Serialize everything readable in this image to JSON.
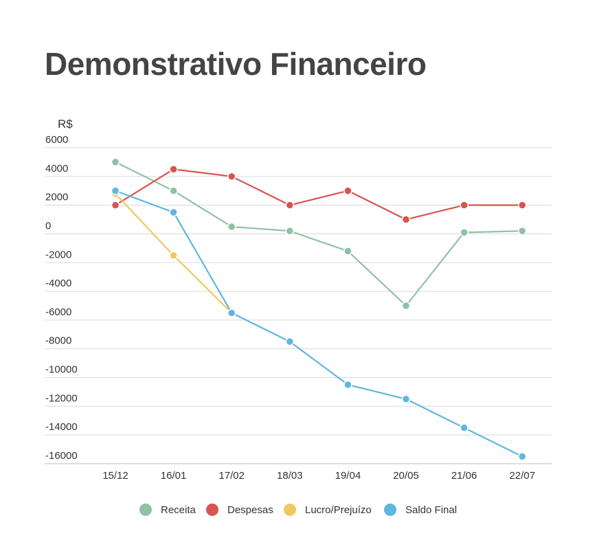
{
  "chart_data": {
    "type": "line",
    "title": "Demonstrativo Financeiro",
    "ylabel": "R$",
    "xlabel": "",
    "categories": [
      "15/12",
      "16/01",
      "17/02",
      "18/03",
      "19/04",
      "20/05",
      "21/06",
      "22/07"
    ],
    "y_ticks": [
      "6000",
      "4000",
      "2000",
      "0",
      "-2000",
      "-4000",
      "-6000",
      "-8000",
      "-10000",
      "-12000",
      "-14000",
      "-16000"
    ],
    "ylim": [
      -16000,
      6000
    ],
    "grid": true,
    "legend_position": "bottom",
    "series": [
      {
        "name": "Receita",
        "color": "#8fc1a5",
        "values": [
          5000,
          3000,
          500,
          200,
          -1200,
          -5000,
          100,
          200
        ]
      },
      {
        "name": "Despesas",
        "color": "#d9534f",
        "values": [
          2000,
          4500,
          4000,
          2000,
          3000,
          1000,
          2000,
          2000
        ]
      },
      {
        "name": "Lucro/Prejuízo",
        "color": "#f0c860",
        "values": [
          2800,
          -1500,
          -5500,
          null,
          null,
          null,
          null,
          null
        ]
      },
      {
        "name": "Saldo Final",
        "color": "#5fb6e0",
        "values": [
          3000,
          1500,
          -5500,
          -7500,
          -10500,
          -11500,
          -13500,
          -15500
        ]
      }
    ]
  }
}
